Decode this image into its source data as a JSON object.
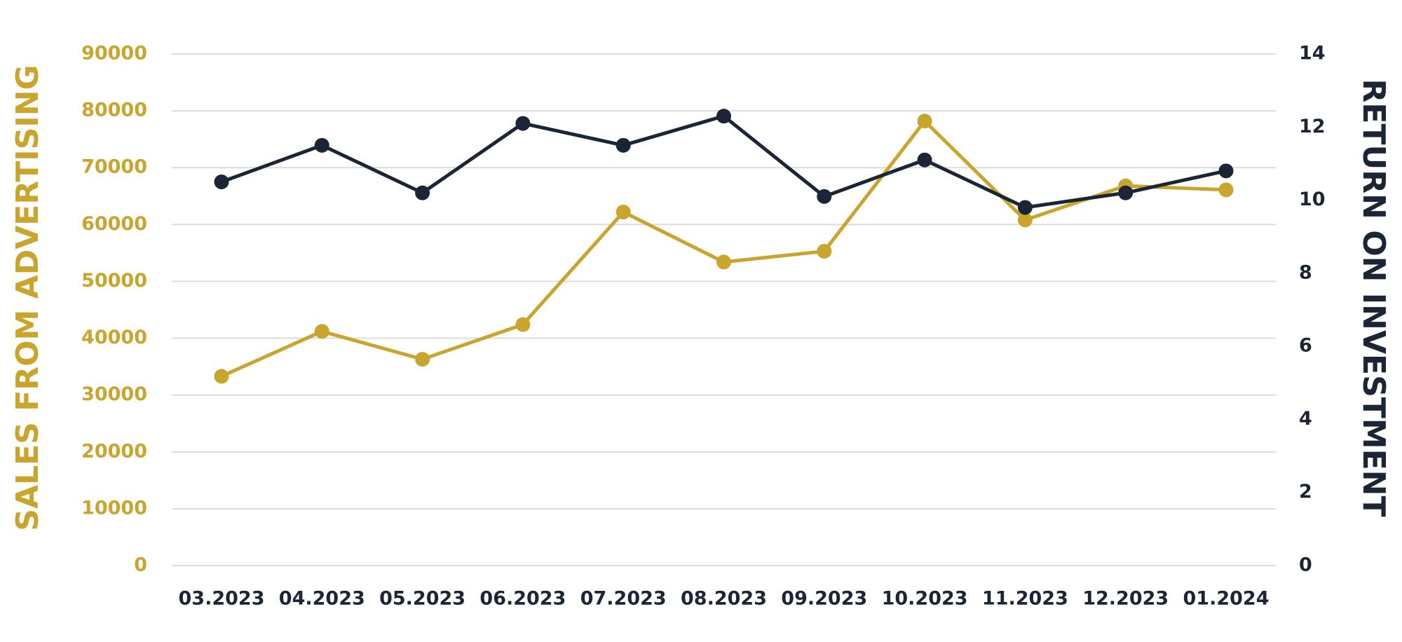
{
  "chart_data": {
    "type": "line",
    "categories": [
      "03.2023",
      "04.2023",
      "05.2023",
      "06.2023",
      "07.2023",
      "08.2023",
      "09.2023",
      "10.2023",
      "11.2023",
      "12.2023",
      "01.2024"
    ],
    "ylabel": "SALES FROM ADVERTISING",
    "y2label": "RETURN ON INVESTMENT",
    "series": [
      {
        "color": "#c9a52e",
        "axis": "y",
        "values": [
          33300,
          41200,
          36300,
          42400,
          62200,
          53400,
          55300,
          78200,
          60800,
          66800,
          66100
        ]
      },
      {
        "color": "#1b2535",
        "axis": "y2",
        "values": [
          10.5,
          11.5,
          10.2,
          12.1,
          11.5,
          12.3,
          10.1,
          11.1,
          9.8,
          10.2,
          10.8
        ]
      }
    ],
    "ylim": [
      0,
      90000
    ],
    "yticks": [
      0,
      10000,
      20000,
      30000,
      40000,
      50000,
      60000,
      70000,
      80000,
      90000
    ],
    "y2lim": [
      0,
      14
    ],
    "y2ticks": [
      0,
      2,
      4,
      6,
      8,
      10,
      12,
      14
    ],
    "grid": true
  }
}
